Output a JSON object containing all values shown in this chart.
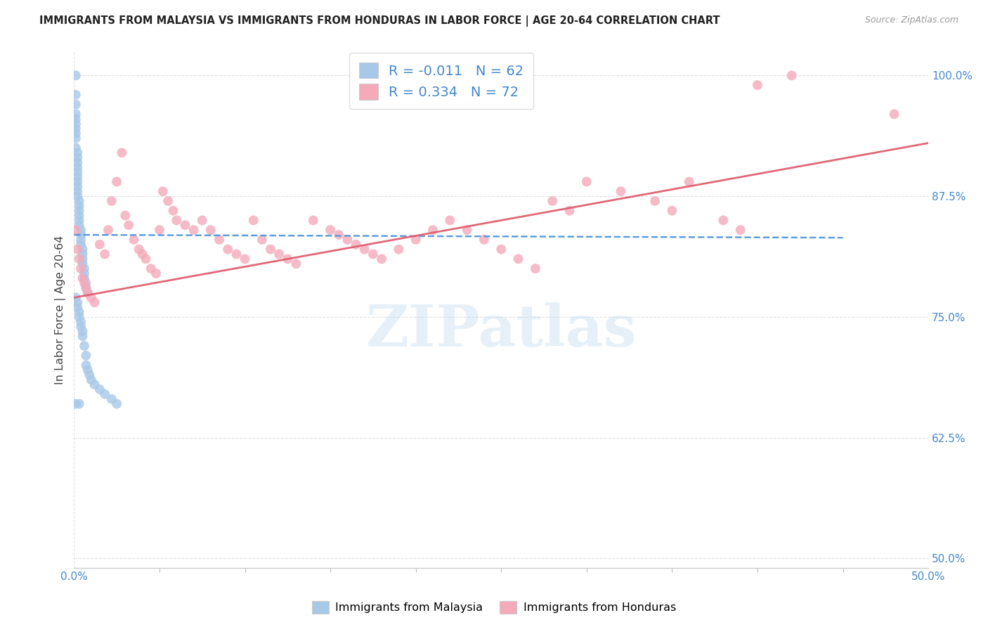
{
  "title": "IMMIGRANTS FROM MALAYSIA VS IMMIGRANTS FROM HONDURAS IN LABOR FORCE | AGE 20-64 CORRELATION CHART",
  "source": "Source: ZipAtlas.com",
  "ylabel": "In Labor Force | Age 20-64",
  "malaysia_R": -0.011,
  "malaysia_N": 62,
  "honduras_R": 0.334,
  "honduras_N": 72,
  "malaysia_color": "#a8c8e8",
  "honduras_color": "#f4aabb",
  "malaysia_line_color": "#5599dd",
  "honduras_line_color": "#e06070",
  "xlim": [
    0.0,
    0.5
  ],
  "ylim": [
    0.49,
    1.025
  ],
  "y_ticks": [
    0.5,
    0.625,
    0.75,
    0.875,
    1.0
  ],
  "y_tick_labels": [
    "50.0%",
    "62.5%",
    "75.0%",
    "87.5%",
    "100.0%"
  ],
  "x_tick_left": "0.0%",
  "x_tick_right": "50.0%",
  "watermark_text": "ZIPatlas",
  "background_color": "#ffffff",
  "grid_color": "#e0e0e0",
  "malaysia_x": [
    0.001,
    0.001,
    0.001,
    0.001,
    0.001,
    0.001,
    0.001,
    0.001,
    0.001,
    0.001,
    0.002,
    0.002,
    0.002,
    0.002,
    0.002,
    0.002,
    0.002,
    0.002,
    0.002,
    0.002,
    0.003,
    0.003,
    0.003,
    0.003,
    0.003,
    0.003,
    0.004,
    0.004,
    0.004,
    0.004,
    0.005,
    0.005,
    0.005,
    0.005,
    0.006,
    0.006,
    0.006,
    0.007,
    0.007,
    0.008,
    0.001,
    0.002,
    0.002,
    0.003,
    0.003,
    0.004,
    0.004,
    0.005,
    0.005,
    0.006,
    0.007,
    0.007,
    0.008,
    0.009,
    0.01,
    0.012,
    0.015,
    0.018,
    0.022,
    0.025,
    0.001,
    0.003
  ],
  "malaysia_y": [
    1.0,
    0.98,
    0.97,
    0.96,
    0.955,
    0.95,
    0.945,
    0.94,
    0.935,
    0.925,
    0.92,
    0.915,
    0.91,
    0.905,
    0.9,
    0.895,
    0.89,
    0.885,
    0.88,
    0.875,
    0.87,
    0.865,
    0.86,
    0.855,
    0.85,
    0.845,
    0.84,
    0.835,
    0.83,
    0.825,
    0.82,
    0.815,
    0.81,
    0.805,
    0.8,
    0.795,
    0.79,
    0.785,
    0.78,
    0.775,
    0.77,
    0.765,
    0.76,
    0.755,
    0.75,
    0.745,
    0.74,
    0.735,
    0.73,
    0.72,
    0.71,
    0.7,
    0.695,
    0.69,
    0.685,
    0.68,
    0.675,
    0.67,
    0.665,
    0.66,
    0.66,
    0.66
  ],
  "honduras_x": [
    0.001,
    0.002,
    0.003,
    0.004,
    0.005,
    0.006,
    0.007,
    0.008,
    0.01,
    0.012,
    0.015,
    0.018,
    0.02,
    0.022,
    0.025,
    0.028,
    0.03,
    0.032,
    0.035,
    0.038,
    0.04,
    0.042,
    0.045,
    0.048,
    0.05,
    0.052,
    0.055,
    0.058,
    0.06,
    0.065,
    0.07,
    0.075,
    0.08,
    0.085,
    0.09,
    0.095,
    0.1,
    0.105,
    0.11,
    0.115,
    0.12,
    0.125,
    0.13,
    0.14,
    0.15,
    0.155,
    0.16,
    0.165,
    0.17,
    0.175,
    0.18,
    0.19,
    0.2,
    0.21,
    0.22,
    0.23,
    0.24,
    0.25,
    0.26,
    0.27,
    0.28,
    0.29,
    0.3,
    0.32,
    0.34,
    0.35,
    0.36,
    0.38,
    0.39,
    0.4,
    0.42,
    0.48
  ],
  "honduras_y": [
    0.84,
    0.82,
    0.81,
    0.8,
    0.79,
    0.785,
    0.78,
    0.775,
    0.77,
    0.765,
    0.825,
    0.815,
    0.84,
    0.87,
    0.89,
    0.92,
    0.855,
    0.845,
    0.83,
    0.82,
    0.815,
    0.81,
    0.8,
    0.795,
    0.84,
    0.88,
    0.87,
    0.86,
    0.85,
    0.845,
    0.84,
    0.85,
    0.84,
    0.83,
    0.82,
    0.815,
    0.81,
    0.85,
    0.83,
    0.82,
    0.815,
    0.81,
    0.805,
    0.85,
    0.84,
    0.835,
    0.83,
    0.825,
    0.82,
    0.815,
    0.81,
    0.82,
    0.83,
    0.84,
    0.85,
    0.84,
    0.83,
    0.82,
    0.81,
    0.8,
    0.87,
    0.86,
    0.89,
    0.88,
    0.87,
    0.86,
    0.89,
    0.85,
    0.84,
    0.99,
    1.0,
    0.96
  ]
}
